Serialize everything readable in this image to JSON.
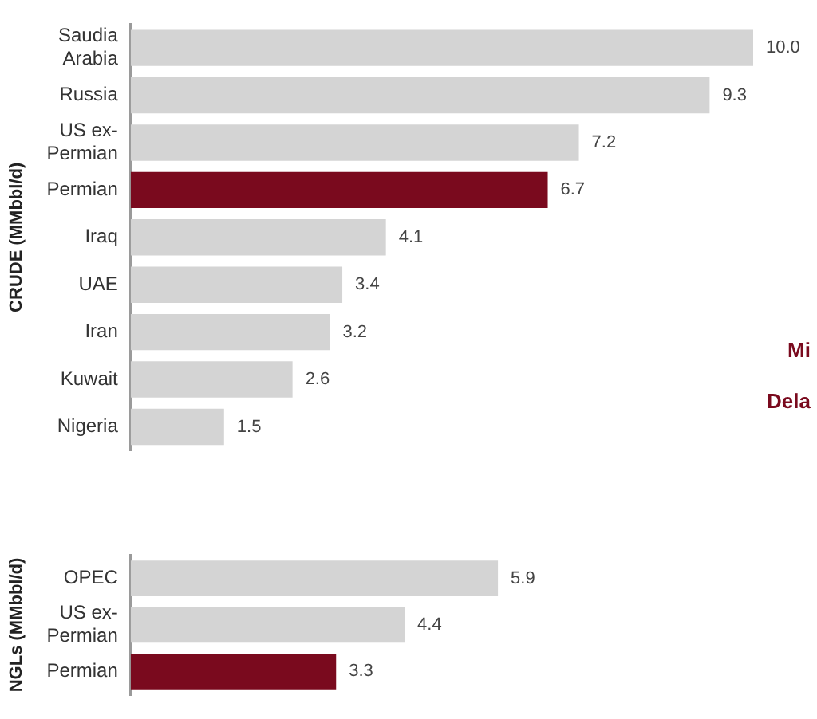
{
  "chart_data": [
    {
      "type": "bar",
      "orientation": "horizontal",
      "ylabel": "CRUDE (MMbbl/d)",
      "categories": [
        "Saudia Arabia",
        "Russia",
        "US ex-Permian",
        "Permian",
        "Iraq",
        "UAE",
        "Iran",
        "Kuwait",
        "Nigeria"
      ],
      "values": [
        10.0,
        9.3,
        7.2,
        6.7,
        4.1,
        3.4,
        3.2,
        2.6,
        1.5
      ],
      "colors": [
        "#d4d4d4",
        "#d4d4d4",
        "#d4d4d4",
        "#7a0a1e",
        "#d4d4d4",
        "#d4d4d4",
        "#d4d4d4",
        "#d4d4d4",
        "#d4d4d4"
      ],
      "tick_labels": "y",
      "value_labels": [
        "10.0",
        "9.3",
        "7.2",
        "6.7",
        "4.1",
        "3.4",
        "3.2",
        "2.6",
        "1.5"
      ],
      "grid": false,
      "legend": false,
      "annotations": [
        "Mi",
        "Dela"
      ]
    },
    {
      "type": "bar",
      "orientation": "horizontal",
      "ylabel": "NGLs (MMbbl/d)",
      "categories": [
        "OPEC",
        "US ex-Permian",
        "Permian"
      ],
      "values": [
        5.9,
        4.4,
        3.3
      ],
      "colors": [
        "#d4d4d4",
        "#d4d4d4",
        "#7a0a1e"
      ],
      "tick_labels": "y",
      "value_labels": [
        "5.9",
        "4.4",
        "3.3"
      ],
      "grid": false,
      "legend": false
    }
  ]
}
